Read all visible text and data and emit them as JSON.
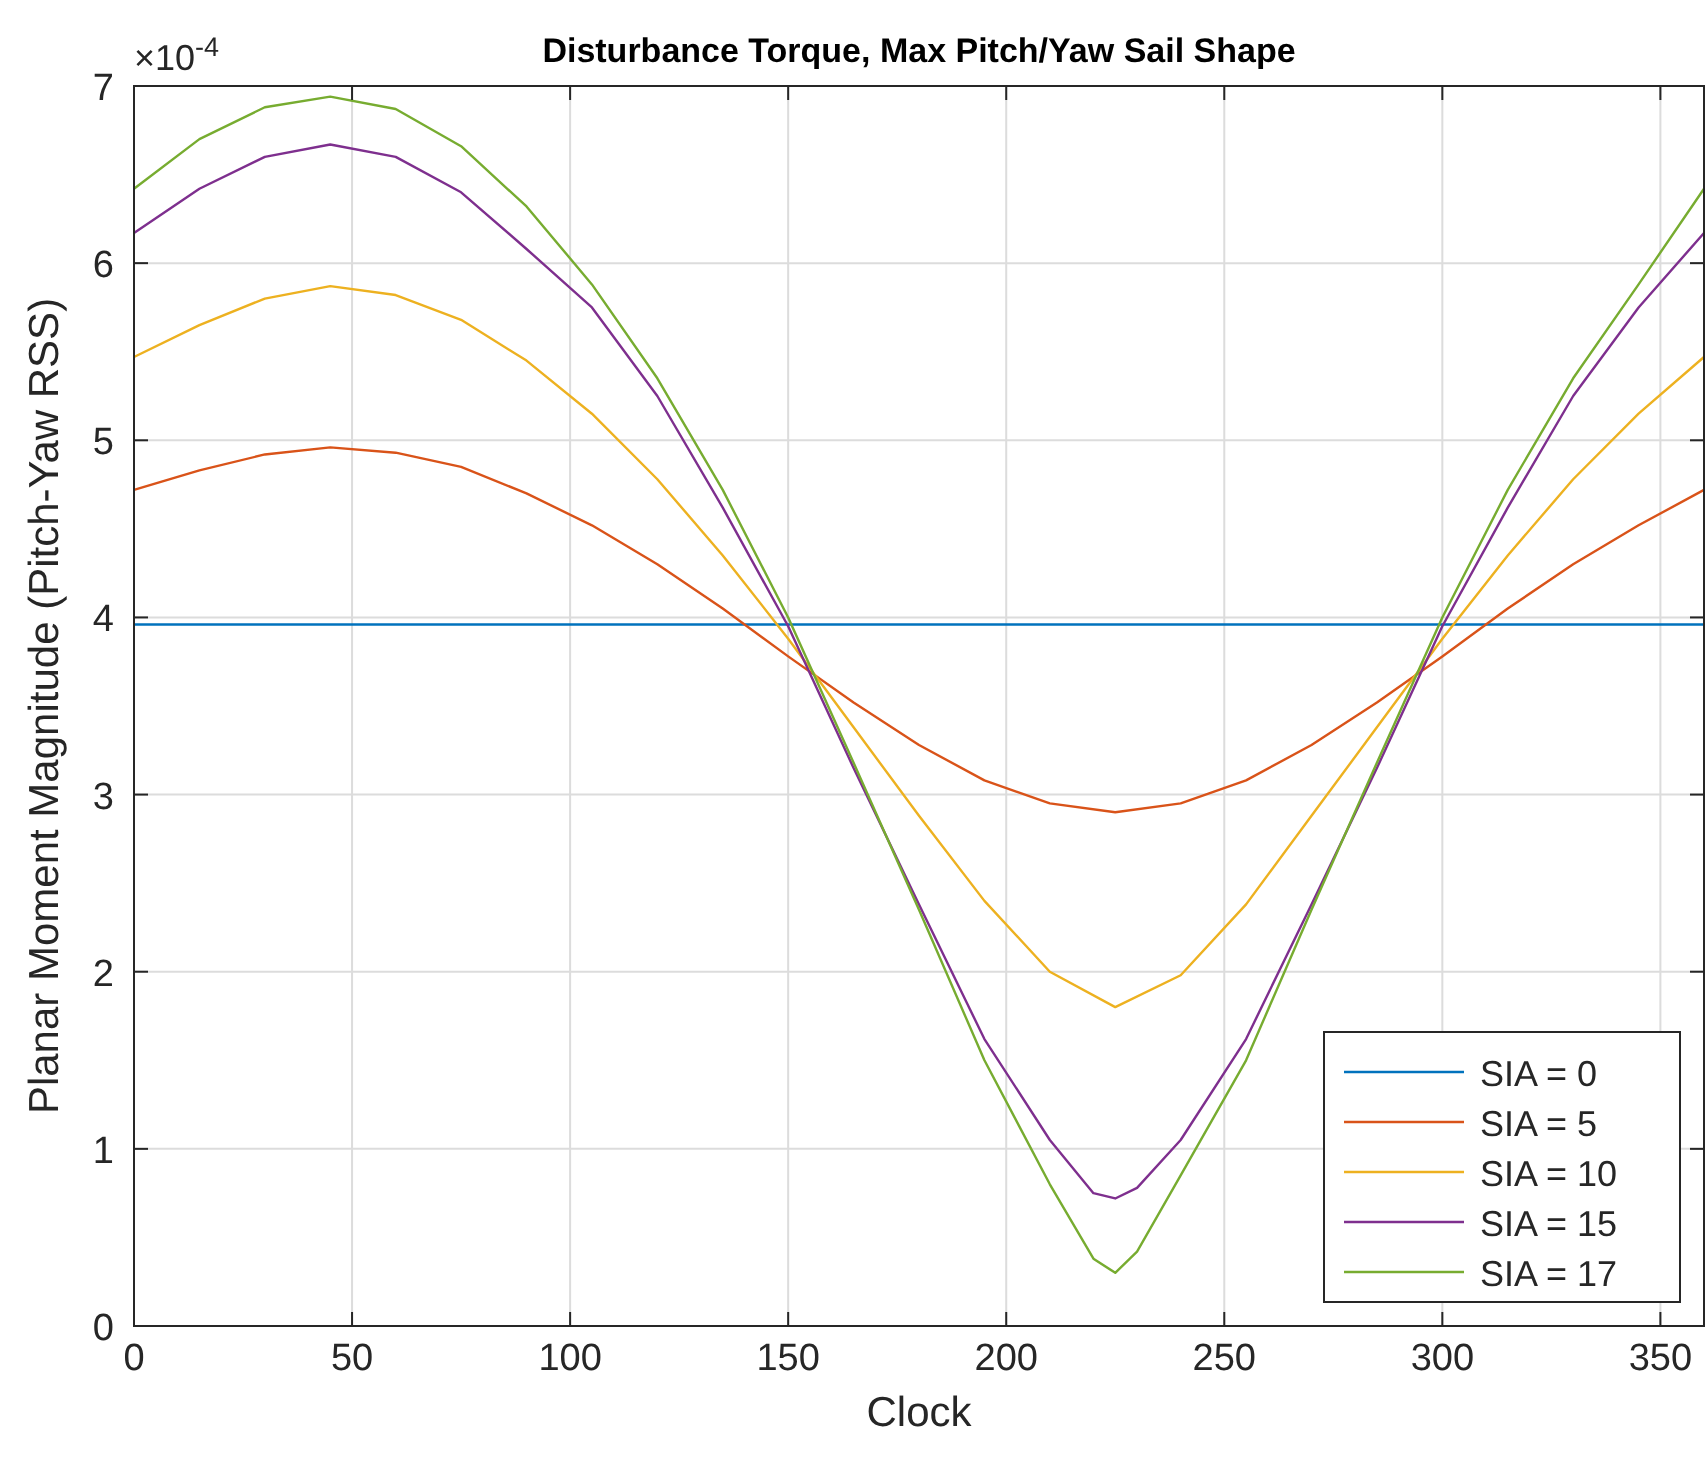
{
  "chart_data": {
    "type": "line",
    "title": "Disturbance Torque, Max Pitch/Yaw Sail Shape",
    "xlabel": "Clock",
    "ylabel": "Planar Moment Magnitude (Pitch-Yaw RSS)",
    "annotations": [
      "×10$^{-4}$"
    ],
    "xlim": [
      0,
      360
    ],
    "xticks": [
      0,
      50,
      100,
      150,
      200,
      250,
      300,
      350
    ],
    "ylim": [
      0,
      7
    ],
    "yticks": [
      0,
      1,
      2,
      3,
      4,
      5,
      6,
      7
    ],
    "grid": true,
    "legend": "bottom right",
    "marker": "none",
    "line_style": "solid",
    "series": [
      {
        "name": "SIA = 0",
        "color": "#0072bd",
        "x": [
          0,
          360
        ],
        "values": [
          3.96,
          3.96
        ]
      },
      {
        "name": "SIA = 5",
        "color": "#d95319",
        "x": [
          0,
          15,
          30,
          45,
          60,
          75,
          90,
          105,
          120,
          135,
          150,
          165,
          180,
          195,
          210,
          225,
          240,
          255,
          270,
          285,
          300,
          315,
          330,
          345,
          360
        ],
        "values": [
          4.72,
          4.83,
          4.92,
          4.96,
          4.93,
          4.85,
          4.7,
          4.52,
          4.3,
          4.05,
          3.78,
          3.52,
          3.28,
          3.08,
          2.95,
          2.9,
          2.95,
          3.08,
          3.28,
          3.52,
          3.78,
          4.05,
          4.3,
          4.52,
          4.72
        ]
      },
      {
        "name": "SIA = 10",
        "color": "#edb120",
        "x": [
          0,
          15,
          30,
          45,
          60,
          75,
          90,
          105,
          120,
          135,
          150,
          165,
          180,
          195,
          210,
          225,
          240,
          255,
          270,
          285,
          300,
          315,
          330,
          345,
          360
        ],
        "values": [
          5.47,
          5.65,
          5.8,
          5.87,
          5.82,
          5.68,
          5.45,
          5.15,
          4.78,
          4.35,
          3.88,
          3.38,
          2.88,
          2.4,
          2.0,
          1.8,
          1.98,
          2.38,
          2.88,
          3.38,
          3.88,
          4.35,
          4.78,
          5.15,
          5.47
        ]
      },
      {
        "name": "SIA = 15",
        "color": "#7e2f8e",
        "x": [
          0,
          15,
          30,
          45,
          60,
          75,
          90,
          105,
          120,
          135,
          150,
          165,
          180,
          195,
          210,
          220,
          225,
          230,
          240,
          255,
          270,
          285,
          300,
          315,
          330,
          345,
          360
        ],
        "values": [
          6.17,
          6.42,
          6.6,
          6.67,
          6.6,
          6.4,
          6.08,
          5.75,
          5.25,
          4.62,
          3.95,
          3.15,
          2.38,
          1.62,
          1.05,
          0.75,
          0.72,
          0.78,
          1.05,
          1.62,
          2.38,
          3.15,
          3.95,
          4.62,
          5.25,
          5.75,
          6.17
        ]
      },
      {
        "name": "SIA = 17",
        "color": "#77ac30",
        "x": [
          0,
          15,
          30,
          45,
          60,
          75,
          90,
          105,
          120,
          135,
          150,
          165,
          180,
          195,
          210,
          220,
          225,
          230,
          240,
          255,
          270,
          285,
          300,
          315,
          330,
          345,
          360
        ],
        "values": [
          6.42,
          6.7,
          6.88,
          6.94,
          6.87,
          6.66,
          6.32,
          5.88,
          5.35,
          4.72,
          4.0,
          3.18,
          2.35,
          1.5,
          0.8,
          0.38,
          0.3,
          0.42,
          0.85,
          1.5,
          2.35,
          3.18,
          4.0,
          4.72,
          5.35,
          5.88,
          6.42
        ]
      }
    ]
  }
}
